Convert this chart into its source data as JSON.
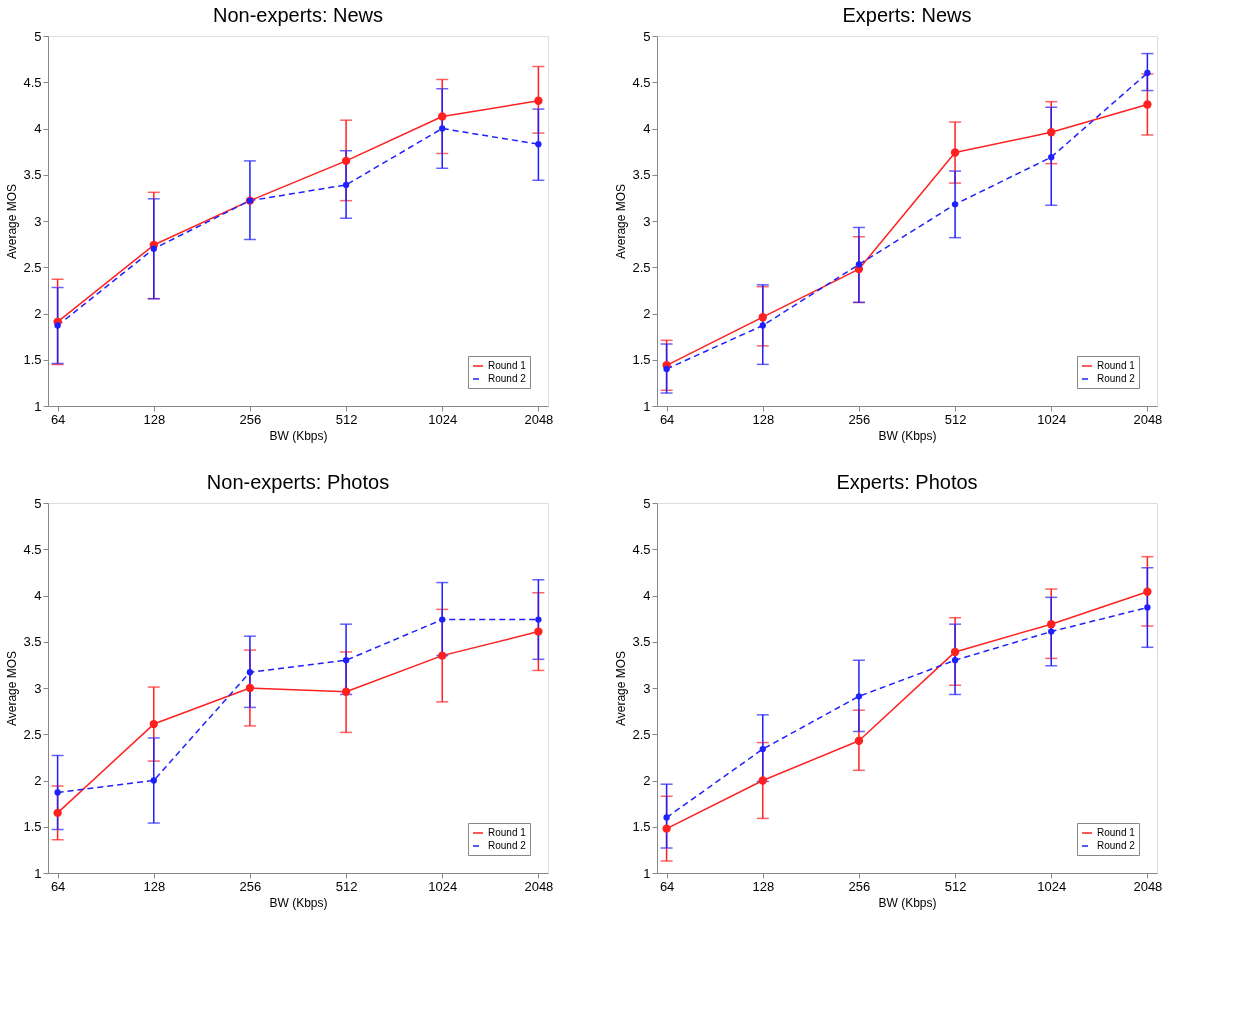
{
  "chart_data": [
    {
      "type": "line",
      "title": "Non-experts: News",
      "xlabel": "BW (Kbps)",
      "ylabel": "Average MOS",
      "categories": [
        "64",
        "128",
        "256",
        "512",
        "1024",
        "2048"
      ],
      "ylim": [
        1,
        5
      ],
      "yticks": [
        1,
        1.5,
        2,
        2.5,
        3,
        3.5,
        4,
        4.5,
        5
      ],
      "grid": false,
      "legend": "bottom right",
      "marker": "circle",
      "series": [
        {
          "name": "Round 1",
          "color": "#ff2020",
          "line_style": "solid",
          "values": [
            1.91,
            2.74,
            3.22,
            3.65,
            4.13,
            4.3
          ],
          "errors": [
            [
              1.45,
              2.37
            ],
            [
              2.16,
              3.31
            ],
            null,
            [
              3.22,
              4.09
            ],
            [
              3.73,
              4.53
            ],
            [
              3.95,
              4.67
            ]
          ]
        },
        {
          "name": "Round 2",
          "color": "#2020ff",
          "line_style": "dashed",
          "values": [
            1.87,
            2.7,
            3.22,
            3.39,
            4.0,
            3.83
          ],
          "errors": [
            [
              1.46,
              2.28
            ],
            [
              2.16,
              3.24
            ],
            [
              2.8,
              3.65
            ],
            [
              3.03,
              3.76
            ],
            [
              3.57,
              4.43
            ],
            [
              3.44,
              4.21
            ]
          ]
        }
      ]
    },
    {
      "type": "line",
      "title": "Experts: News",
      "xlabel": "BW (Kbps)",
      "ylabel": "Average MOS",
      "categories": [
        "64",
        "128",
        "256",
        "512",
        "1024",
        "2048"
      ],
      "ylim": [
        1,
        5
      ],
      "yticks": [
        1,
        1.5,
        2,
        2.5,
        3,
        3.5,
        4,
        4.5,
        5
      ],
      "grid": false,
      "legend": "bottom right",
      "marker": "circle",
      "series": [
        {
          "name": "Round 1",
          "color": "#ff2020",
          "line_style": "solid",
          "values": [
            1.44,
            1.96,
            2.48,
            3.74,
            3.96,
            4.26
          ],
          "errors": [
            [
              1.17,
              1.71
            ],
            [
              1.65,
              2.29
            ],
            [
              2.12,
              2.83
            ],
            [
              3.41,
              4.07
            ],
            [
              3.62,
              4.29
            ],
            [
              3.93,
              4.59
            ]
          ]
        },
        {
          "name": "Round 2",
          "color": "#2020ff",
          "line_style": "dashed",
          "values": [
            1.4,
            1.87,
            2.53,
            3.18,
            3.69,
            4.6
          ],
          "errors": [
            [
              1.14,
              1.67
            ],
            [
              1.45,
              2.31
            ],
            [
              2.12,
              2.93
            ],
            [
              2.82,
              3.54
            ],
            [
              3.17,
              4.23
            ],
            [
              4.41,
              4.81
            ]
          ]
        }
      ]
    },
    {
      "type": "line",
      "title": "Non-experts: Photos",
      "xlabel": "BW (Kbps)",
      "ylabel": "Average MOS",
      "categories": [
        "64",
        "128",
        "256",
        "512",
        "1024",
        "2048"
      ],
      "ylim": [
        1,
        5
      ],
      "yticks": [
        1,
        1.5,
        2,
        2.5,
        3,
        3.5,
        4,
        4.5,
        5
      ],
      "grid": false,
      "legend": "bottom right",
      "marker": "circle",
      "series": [
        {
          "name": "Round 1",
          "color": "#ff2020",
          "line_style": "solid",
          "values": [
            1.65,
            2.61,
            3.0,
            2.96,
            3.35,
            3.61
          ],
          "errors": [
            [
              1.36,
              1.94
            ],
            [
              2.21,
              3.01
            ],
            [
              2.59,
              3.41
            ],
            [
              2.52,
              3.39
            ],
            [
              2.85,
              3.85
            ],
            [
              3.19,
              4.03
            ]
          ]
        },
        {
          "name": "Round 2",
          "color": "#2020ff",
          "line_style": "dashed",
          "values": [
            1.87,
            2.0,
            3.17,
            3.3,
            3.74,
            3.74
          ],
          "errors": [
            [
              1.47,
              2.27
            ],
            [
              1.54,
              2.46
            ],
            [
              2.79,
              3.56
            ],
            [
              2.93,
              3.69
            ],
            [
              3.35,
              4.14
            ],
            [
              3.31,
              4.17
            ]
          ]
        }
      ]
    },
    {
      "type": "line",
      "title": "Experts: Photos",
      "xlabel": "BW (Kbps)",
      "ylabel": "Average MOS",
      "categories": [
        "64",
        "128",
        "256",
        "512",
        "1024",
        "2048"
      ],
      "ylim": [
        1,
        5
      ],
      "yticks": [
        1,
        1.5,
        2,
        2.5,
        3,
        3.5,
        4,
        4.5,
        5
      ],
      "grid": false,
      "legend": "bottom right",
      "marker": "circle",
      "series": [
        {
          "name": "Round 1",
          "color": "#ff2020",
          "line_style": "solid",
          "values": [
            1.48,
            2.0,
            2.43,
            3.39,
            3.69,
            4.04
          ],
          "errors": [
            [
              1.13,
              1.83
            ],
            [
              1.59,
              2.41
            ],
            [
              2.11,
              2.76
            ],
            [
              3.03,
              3.76
            ],
            [
              3.32,
              4.07
            ],
            [
              3.67,
              4.42
            ]
          ]
        },
        {
          "name": "Round 2",
          "color": "#2020ff",
          "line_style": "dashed",
          "values": [
            1.6,
            2.34,
            2.91,
            3.3,
            3.61,
            3.87
          ],
          "errors": [
            [
              1.27,
              1.96
            ],
            [
              1.99,
              2.71
            ],
            [
              2.53,
              3.3
            ],
            [
              2.93,
              3.69
            ],
            [
              3.24,
              3.98
            ],
            [
              3.44,
              4.3
            ]
          ]
        }
      ]
    }
  ]
}
